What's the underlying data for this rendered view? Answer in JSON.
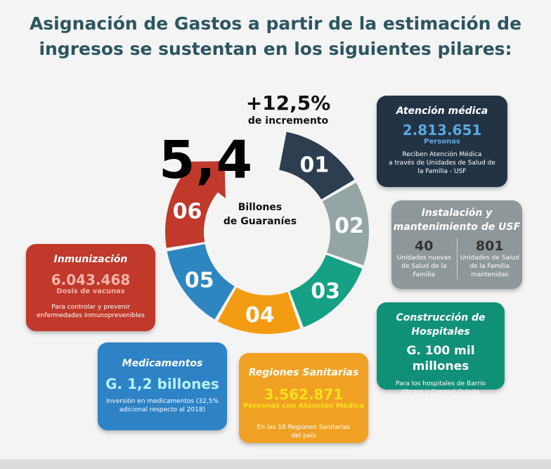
{
  "title": {
    "line1": "Asignación de Gastos a partir de la estimación de",
    "line2": "ingresos se sustentan en los siguientes pilares:"
  },
  "increment": {
    "value": "+12,5%",
    "label": "de incremento"
  },
  "center": {
    "value": "5,4",
    "label_line1": "Billones",
    "label_line2": "de Guaraníes"
  },
  "segments": [
    {
      "label": "01",
      "color": "#2c3e50"
    },
    {
      "label": "02",
      "color": "#95a5a6"
    },
    {
      "label": "03",
      "color": "#16a085"
    },
    {
      "label": "04",
      "color": "#f39c12"
    },
    {
      "label": "05",
      "color": "#2e86c1"
    },
    {
      "label": "06",
      "color": "#c0392b"
    }
  ],
  "cards": {
    "atencion": {
      "heading": "Atención médica",
      "value": "2.813.651",
      "unit": "Personas",
      "desc1": "Reciben Atención Médica",
      "desc2": "a través de Unidades de Salud de",
      "desc3": "la Familia - USF"
    },
    "instalacion": {
      "heading1": "Instalación y",
      "heading2": "mantenimiento de USF",
      "left_value": "40",
      "left_desc1": "Unidades nuevas",
      "left_desc2": "de Salud de la",
      "left_desc3": "Familia",
      "right_value": "801",
      "right_desc1": "Unidades de Salud",
      "right_desc2": "de la Familia",
      "right_desc3": "mantenidas"
    },
    "hospitales": {
      "heading1": "Construcción de",
      "heading2": "Hospitales",
      "value": "G. 100 mil millones",
      "desc1": "Para los hospitales de Barrio",
      "desc2": "Obrero y Coronel Oviedo"
    },
    "regiones": {
      "heading": "Regiones Sanitarias",
      "value": "3.562.871",
      "unit": "Personas con Atención Médica",
      "desc1": "En las 18 Regiones Sanitarias",
      "desc2": "del país"
    },
    "medicamentos": {
      "heading": "Medicamentos",
      "value": "G. 1,2 billones",
      "desc1": "Inversión en medicamentos (32,5%",
      "desc2": "adicional respecto al 2018)"
    },
    "inmunizacion": {
      "heading": "Inmunización",
      "value": "6.043.468",
      "unit": "Dosis de vacunas",
      "desc1": "Para controlar y prevenir",
      "desc2": "enfermedades inmunoprevenibles"
    }
  }
}
